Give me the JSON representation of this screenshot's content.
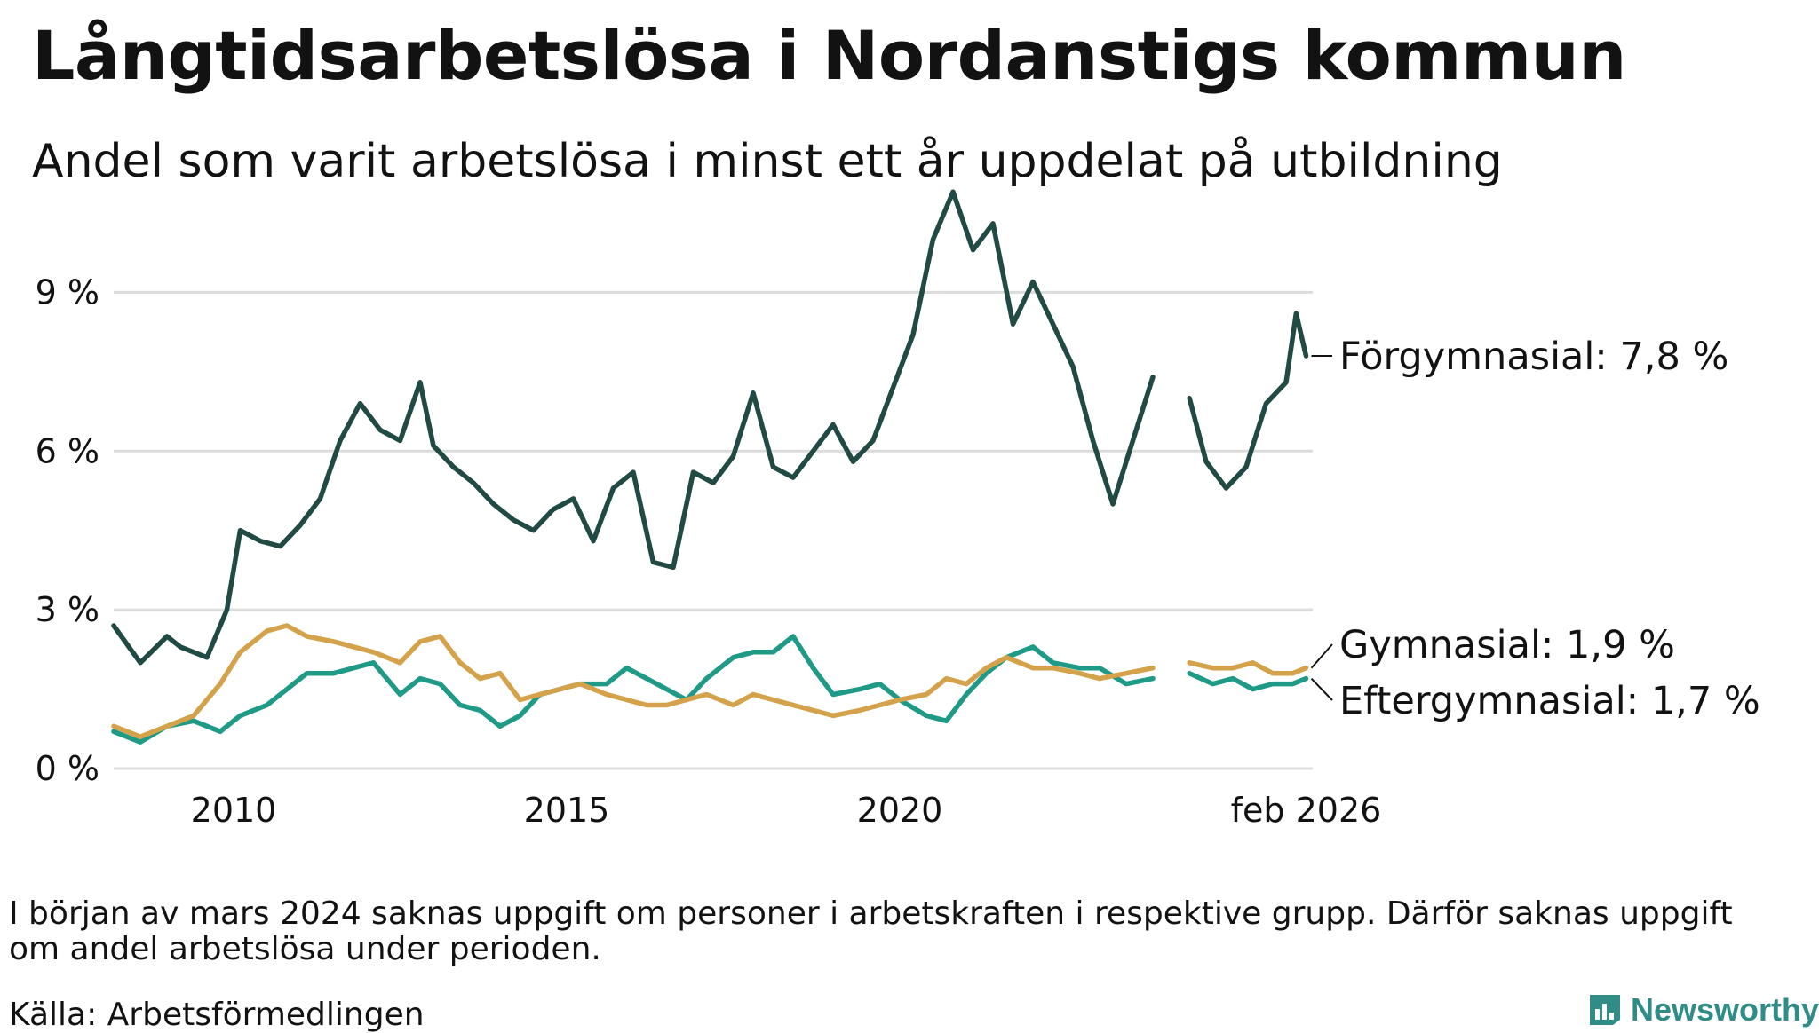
{
  "title": "Långtidsarbetslösa i Nordanstigs kommun",
  "subtitle": "Andel som varit arbetslösa i minst ett år uppdelat på utbildning",
  "note": "I början av mars 2024 saknas uppgift om personer i arbetskraften i respektive grupp. Därför saknas uppgift om andel arbetslösa under perioden.",
  "source": "Källa: Arbetsförmedlingen",
  "brand": "Newsworthy",
  "colors": {
    "forgymnasial": "#214a44",
    "gymnasial": "#d3a24a",
    "eftergymnasial": "#1f9a86",
    "grid": "#dcdcdc",
    "brand": "#2f8c87"
  },
  "chart_data": {
    "type": "line",
    "title": "Långtidsarbetslösa i Nordanstigs kommun",
    "subtitle": "Andel som varit arbetslösa i minst ett år uppdelat på utbildning",
    "xlabel": "",
    "ylabel": "",
    "ylim": [
      0,
      10.5
    ],
    "xlim": [
      2008.2,
      2026.2
    ],
    "yticks": [
      0,
      3,
      6,
      9
    ],
    "ytick_labels": [
      "0 %",
      "3 %",
      "6 %",
      "9 %"
    ],
    "xticks": [
      2010,
      2015,
      2020,
      2026.1
    ],
    "xtick_labels": [
      "2010",
      "2015",
      "2020",
      "feb 2026"
    ],
    "grid": true,
    "gap": [
      2024.0,
      2024.35
    ],
    "series": [
      {
        "name": "Förgymnasial",
        "label": "Förgymnasial: 7,8 %",
        "x": [
          2008.2,
          2008.6,
          2009.0,
          2009.2,
          2009.6,
          2009.9,
          2010.1,
          2010.4,
          2010.7,
          2011.0,
          2011.3,
          2011.6,
          2011.9,
          2012.2,
          2012.5,
          2012.8,
          2013.0,
          2013.3,
          2013.6,
          2013.9,
          2014.2,
          2014.5,
          2014.8,
          2015.1,
          2015.4,
          2015.7,
          2016.0,
          2016.3,
          2016.6,
          2016.9,
          2017.2,
          2017.5,
          2017.8,
          2018.1,
          2018.4,
          2018.7,
          2019.0,
          2019.3,
          2019.6,
          2019.9,
          2020.2,
          2020.5,
          2020.8,
          2021.1,
          2021.4,
          2021.7,
          2022.0,
          2022.3,
          2022.6,
          2022.9,
          2023.2,
          2023.5,
          2023.8,
          2024.0,
          2024.35,
          2024.6,
          2024.9,
          2025.2,
          2025.5,
          2025.8,
          2025.95,
          2026.1
        ],
        "values": [
          2.7,
          2.0,
          2.5,
          2.3,
          2.1,
          3.0,
          4.5,
          4.3,
          4.2,
          4.6,
          5.1,
          6.2,
          6.9,
          6.4,
          6.2,
          7.3,
          6.1,
          5.7,
          5.4,
          5.0,
          4.7,
          4.5,
          4.9,
          5.1,
          4.3,
          5.3,
          5.6,
          3.9,
          3.8,
          5.6,
          5.4,
          5.9,
          7.1,
          5.7,
          5.5,
          6.0,
          6.5,
          5.8,
          6.2,
          7.2,
          8.2,
          10.0,
          10.9,
          9.8,
          10.3,
          8.4,
          9.2,
          8.4,
          7.6,
          6.2,
          5.0,
          6.2,
          7.4,
          null,
          7.0,
          5.8,
          5.3,
          5.7,
          6.9,
          7.3,
          8.6,
          7.8
        ],
        "end_value": 7.8
      },
      {
        "name": "Gymnasial",
        "label": "Gymnasial: 1,9 %",
        "x": [
          2008.2,
          2008.6,
          2009.0,
          2009.4,
          2009.8,
          2010.1,
          2010.5,
          2010.8,
          2011.1,
          2011.5,
          2011.8,
          2012.1,
          2012.5,
          2012.8,
          2013.1,
          2013.4,
          2013.7,
          2014.0,
          2014.3,
          2014.6,
          2014.9,
          2015.2,
          2015.6,
          2015.9,
          2016.2,
          2016.5,
          2016.8,
          2017.1,
          2017.5,
          2017.8,
          2018.1,
          2018.4,
          2018.7,
          2019.0,
          2019.4,
          2019.7,
          2020.0,
          2020.4,
          2020.7,
          2021.0,
          2021.3,
          2021.6,
          2022.0,
          2022.3,
          2022.7,
          2023.0,
          2023.4,
          2023.8,
          2024.0,
          2024.35,
          2024.7,
          2025.0,
          2025.3,
          2025.6,
          2025.9,
          2026.1
        ],
        "values": [
          0.8,
          0.6,
          0.8,
          1.0,
          1.6,
          2.2,
          2.6,
          2.7,
          2.5,
          2.4,
          2.3,
          2.2,
          2.0,
          2.4,
          2.5,
          2.0,
          1.7,
          1.8,
          1.3,
          1.4,
          1.5,
          1.6,
          1.4,
          1.3,
          1.2,
          1.2,
          1.3,
          1.4,
          1.2,
          1.4,
          1.3,
          1.2,
          1.1,
          1.0,
          1.1,
          1.2,
          1.3,
          1.4,
          1.7,
          1.6,
          1.9,
          2.1,
          1.9,
          1.9,
          1.8,
          1.7,
          1.8,
          1.9,
          null,
          2.0,
          1.9,
          1.9,
          2.0,
          1.8,
          1.8,
          1.9
        ],
        "end_value": 1.9
      },
      {
        "name": "Eftergymnasial",
        "label": "Eftergymnasial: 1,7 %",
        "x": [
          2008.2,
          2008.6,
          2009.0,
          2009.4,
          2009.8,
          2010.1,
          2010.5,
          2010.8,
          2011.1,
          2011.5,
          2011.8,
          2012.1,
          2012.5,
          2012.8,
          2013.1,
          2013.4,
          2013.7,
          2014.0,
          2014.3,
          2014.6,
          2014.9,
          2015.2,
          2015.6,
          2015.9,
          2016.2,
          2016.5,
          2016.8,
          2017.1,
          2017.5,
          2017.8,
          2018.1,
          2018.4,
          2018.7,
          2019.0,
          2019.4,
          2019.7,
          2020.0,
          2020.4,
          2020.7,
          2021.0,
          2021.3,
          2021.6,
          2022.0,
          2022.3,
          2022.7,
          2023.0,
          2023.4,
          2023.8,
          2024.0,
          2024.35,
          2024.7,
          2025.0,
          2025.3,
          2025.6,
          2025.9,
          2026.1
        ],
        "values": [
          0.7,
          0.5,
          0.8,
          0.9,
          0.7,
          1.0,
          1.2,
          1.5,
          1.8,
          1.8,
          1.9,
          2.0,
          1.4,
          1.7,
          1.6,
          1.2,
          1.1,
          0.8,
          1.0,
          1.4,
          1.5,
          1.6,
          1.6,
          1.9,
          1.7,
          1.5,
          1.3,
          1.7,
          2.1,
          2.2,
          2.2,
          2.5,
          1.9,
          1.4,
          1.5,
          1.6,
          1.3,
          1.0,
          0.9,
          1.4,
          1.8,
          2.1,
          2.3,
          2.0,
          1.9,
          1.9,
          1.6,
          1.7,
          null,
          1.8,
          1.6,
          1.7,
          1.5,
          1.6,
          1.6,
          1.7
        ],
        "end_value": 1.7
      }
    ]
  }
}
